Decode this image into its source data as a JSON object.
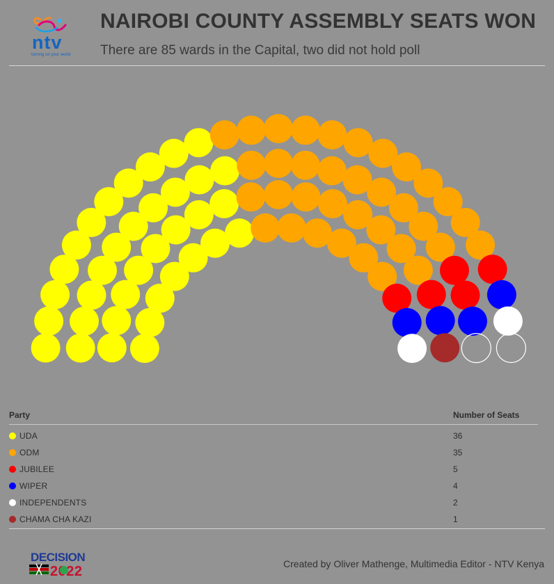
{
  "header": {
    "logo_text": "ntv",
    "logo_tagline": "turning on your world",
    "title": "NAIROBI COUNTY ASSEMBLY SEATS WON",
    "subtitle": "There are 85 wards in the Capital, two did not hold poll"
  },
  "chart_data": {
    "type": "parliament",
    "total_wards": 85,
    "parties": [
      {
        "name": "UDA",
        "seats": 36,
        "color": "#ffff00"
      },
      {
        "name": "ODM",
        "seats": 35,
        "color": "#ffa500"
      },
      {
        "name": "JUBILEE",
        "seats": 5,
        "color": "#ff0000"
      },
      {
        "name": "WIPER",
        "seats": 4,
        "color": "#0000ff"
      },
      {
        "name": "INDEPENDENTS",
        "seats": 2,
        "color": "#ffffff"
      },
      {
        "name": "CHAMA CHA KAZI",
        "seats": 1,
        "color": "#a52a2a"
      }
    ],
    "no_poll_seats": 2
  },
  "legend": {
    "col_party": "Party",
    "col_seats": "Number of Seats"
  },
  "footer": {
    "badge_line1": "DECISION",
    "badge_line2": "2022",
    "credit": "Created by Oliver Mathenge, Multimedia Editor - NTV Kenya"
  }
}
